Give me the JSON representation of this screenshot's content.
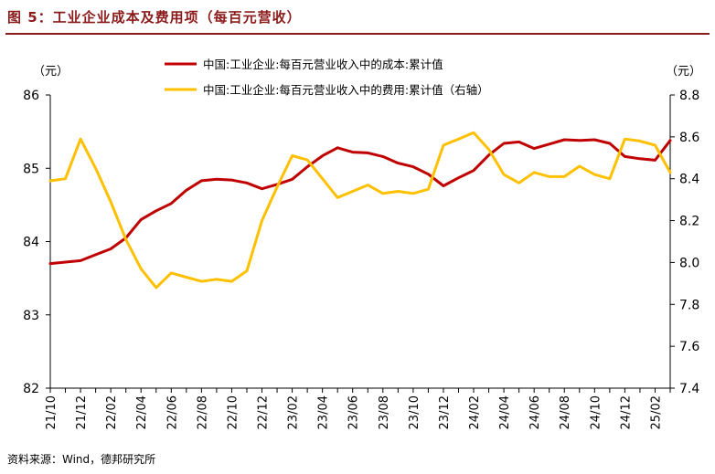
{
  "figure": {
    "title": "图 5：工业企业成本及费用项（每百元营收）",
    "source": "资料来源：Wind，德邦研究所"
  },
  "chart_data": {
    "type": "line",
    "x": [
      "21/10",
      "21/11",
      "21/12",
      "22/01",
      "22/02",
      "22/03",
      "22/04",
      "22/05",
      "22/06",
      "22/07",
      "22/08",
      "22/09",
      "22/10",
      "22/11",
      "22/12",
      "23/01",
      "23/02",
      "23/03",
      "23/04",
      "23/05",
      "23/06",
      "23/07",
      "23/08",
      "23/09",
      "23/10",
      "23/11",
      "23/12",
      "24/01",
      "24/02",
      "24/03",
      "24/04",
      "24/05",
      "24/06",
      "24/07",
      "24/08",
      "24/09",
      "24/10",
      "24/11",
      "24/12",
      "25/01",
      "25/02",
      "25/03"
    ],
    "x_tick_labels": [
      "21/10",
      "21/12",
      "22/02",
      "22/04",
      "22/06",
      "22/08",
      "22/10",
      "22/12",
      "23/02",
      "23/04",
      "23/06",
      "23/08",
      "23/10",
      "23/12",
      "24/02",
      "24/04",
      "24/06",
      "24/08",
      "24/10",
      "24/12",
      "25/02"
    ],
    "series": [
      {
        "name": "中国:工业企业:每百元营业收入中的成本:累计值",
        "axis": "left",
        "color": "#C00000",
        "values": [
          83.7,
          83.72,
          83.74,
          83.82,
          83.9,
          84.05,
          84.3,
          84.42,
          84.52,
          84.7,
          84.83,
          84.85,
          84.84,
          84.8,
          84.72,
          84.78,
          84.85,
          85.02,
          85.17,
          85.28,
          85.22,
          85.21,
          85.16,
          85.07,
          85.02,
          84.92,
          84.76,
          84.87,
          84.97,
          85.18,
          85.34,
          85.36,
          85.27,
          85.33,
          85.39,
          85.38,
          85.39,
          85.34,
          85.16,
          85.13,
          85.11,
          85.38
        ]
      },
      {
        "name": "中国:工业企业:每百元营业收入中的费用:累计值（右轴）",
        "axis": "right",
        "color": "#FFC000",
        "values": [
          8.39,
          8.4,
          8.59,
          8.45,
          8.29,
          8.11,
          7.97,
          7.88,
          7.95,
          7.93,
          7.91,
          7.92,
          7.91,
          7.96,
          8.2,
          8.36,
          8.51,
          8.49,
          8.4,
          8.31,
          8.34,
          8.37,
          8.33,
          8.34,
          8.33,
          8.35,
          8.56,
          8.59,
          8.62,
          8.54,
          8.42,
          8.38,
          8.43,
          8.41,
          8.41,
          8.46,
          8.42,
          8.4,
          8.59,
          8.58,
          8.56,
          8.43
        ]
      }
    ],
    "y_left": {
      "unit": "（元）",
      "ylim": [
        82,
        86
      ],
      "ticks": [
        "82",
        "83",
        "84",
        "85",
        "86"
      ]
    },
    "y_right": {
      "unit": "（元）",
      "ylim": [
        7.4,
        8.8
      ],
      "ticks": [
        "7.4",
        "7.6",
        "7.8",
        "8.0",
        "8.2",
        "8.4",
        "8.6",
        "8.8"
      ]
    },
    "legend": {
      "placement": "top-center"
    },
    "grid": false
  }
}
